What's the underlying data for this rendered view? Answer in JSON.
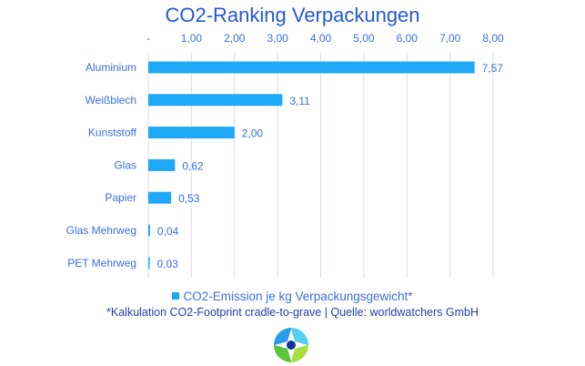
{
  "chart_data": {
    "type": "bar",
    "orientation": "horizontal",
    "title": "CO2-Ranking Verpackungen",
    "categories": [
      "Aluminium",
      "Weißblech",
      "Kunststoff",
      "Glas",
      "Papier",
      "Glas Mehrweg",
      "PET Mehrweg"
    ],
    "series": [
      {
        "name": "CO2-Emission je kg Verpackungsgewicht*",
        "values": [
          7.57,
          3.11,
          2.0,
          0.62,
          0.53,
          0.04,
          0.03
        ]
      }
    ],
    "data_labels": [
      "7,57",
      "3,11",
      "2,00",
      "0,62",
      "0,53",
      "0,04",
      "0,03"
    ],
    "xlim": [
      0,
      8
    ],
    "x_ticks": [
      "-",
      "1,00",
      "2,00",
      "3,00",
      "4,00",
      "5,00",
      "6,00",
      "7,00",
      "8,00"
    ],
    "x_axis_position": "top",
    "grid": true,
    "legend_position": "bottom",
    "footnote": "*Kalkulation CO2-Footprint cradle-to-grave | Quelle: worldwatchers GmbH",
    "colors": {
      "bar": "#1fa8f5",
      "text": "#3a6fe0",
      "grid": "#d6def5",
      "title": "#2457d6"
    }
  },
  "logo": {
    "icon": "compass-star-logo"
  }
}
